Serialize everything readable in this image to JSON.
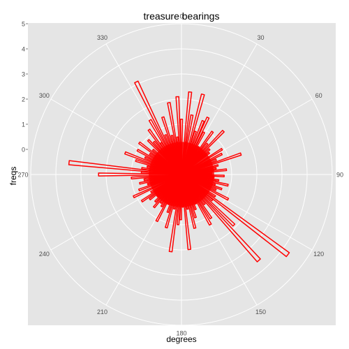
{
  "chart_data": {
    "type": "bar",
    "coord": "polar",
    "title": "treasure bearings",
    "xlabel": "degrees",
    "ylabel": "freqs",
    "theta_unit": "degrees",
    "theta_ticks": [
      "0",
      "30",
      "60",
      "90",
      "120",
      "150",
      "180",
      "210",
      "240",
      "270",
      "300",
      "330"
    ],
    "theta_tick_values": [
      0,
      30,
      60,
      90,
      120,
      150,
      180,
      210,
      240,
      270,
      300,
      330
    ],
    "r_ticks": [
      "0",
      "1",
      "2",
      "3",
      "4",
      "5"
    ],
    "r_tick_values": [
      0,
      1,
      2,
      3,
      4,
      5
    ],
    "r_range": [
      -1,
      5
    ],
    "grid": true,
    "colors": {
      "panel": "#e5e5e5",
      "grid": "#ffffff",
      "bar_outline": "#ff0000",
      "tick_text": "#4d4d4d"
    },
    "series": [
      {
        "bearings": [
          0,
          6,
          10,
          15,
          18,
          22,
          25,
          28,
          32,
          36,
          40,
          44,
          48,
          52,
          58,
          63,
          67,
          71,
          76,
          80,
          84,
          88,
          92,
          95,
          99,
          103,
          107,
          110,
          114,
          118,
          123,
          127,
          130,
          134,
          138,
          142,
          146,
          150,
          154,
          158,
          162,
          166,
          170,
          174,
          178,
          181,
          184,
          188,
          192,
          196,
          200,
          204,
          208,
          212,
          216,
          220,
          224,
          228,
          232,
          236,
          240,
          245,
          250,
          254,
          258,
          262,
          266,
          270,
          273,
          276,
          279,
          283,
          287,
          291,
          295,
          299,
          303,
          307,
          311,
          316,
          320,
          324,
          327,
          330,
          334,
          338,
          342,
          346,
          350,
          354,
          357
        ],
        "freqs": [
          1.2,
          2.3,
          1.4,
          2.3,
          0.8,
          1.3,
          1.5,
          0.9,
          0.3,
          1.1,
          0.6,
          1.4,
          0.5,
          0.4,
          0.9,
          0.8,
          0.5,
          1.5,
          0.5,
          0.4,
          0.8,
          0.2,
          0.7,
          0.3,
          0.5,
          0.9,
          0.4,
          0.7,
          0.5,
          1.1,
          0.6,
          4.3,
          0.6,
          1.9,
          3.6,
          0.5,
          1.1,
          1.3,
          0.3,
          0.5,
          0.8,
          1.2,
          0.4,
          2.0,
          0.3,
          0.8,
          1.0,
          2.1,
          0.4,
          1.2,
          0.6,
          0.3,
          1.1,
          0.5,
          0.4,
          0.7,
          0.5,
          0.3,
          0.6,
          0.9,
          0.4,
          1.1,
          0.8,
          0.4,
          0.7,
          0.5,
          1.0,
          2.3,
          0.6,
          3.5,
          0.6,
          0.4,
          0.9,
          1.4,
          0.6,
          1.0,
          0.5,
          1.1,
          0.5,
          0.9,
          0.7,
          1.2,
          0.5,
          1.5,
          3.1,
          0.7,
          1.4,
          0.6,
          1.9,
          0.5,
          2.1
        ]
      }
    ]
  }
}
